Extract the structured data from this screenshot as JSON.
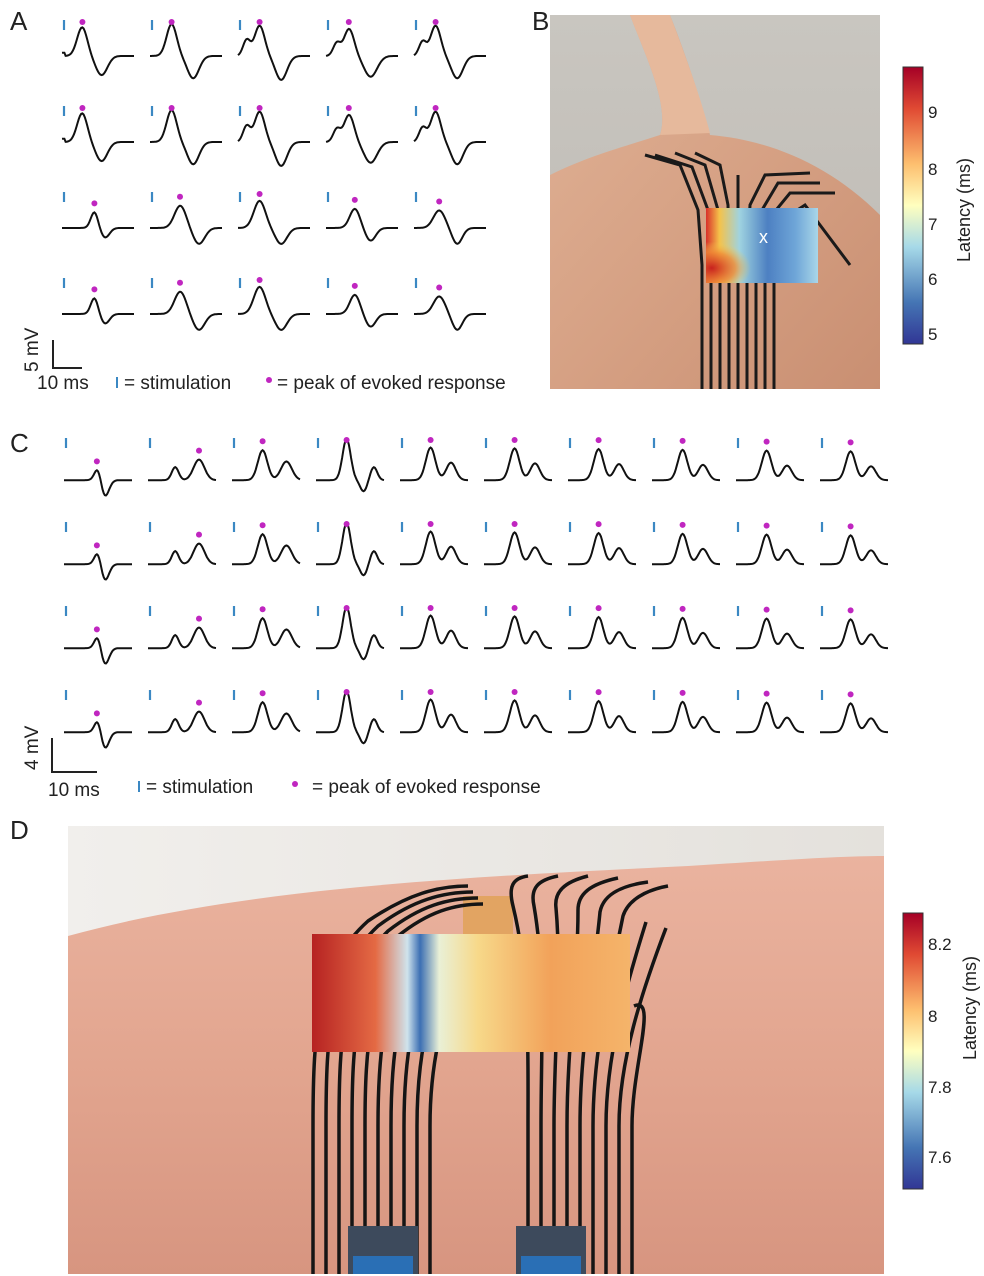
{
  "panels": {
    "a": {
      "label": "A",
      "scale_x": "10 ms",
      "scale_y": "5 mV",
      "legend_stim": "= stimulation",
      "legend_peak": "= peak of evoked response"
    },
    "b": {
      "label": "B",
      "marker": "x",
      "colorbar": {
        "title": "Latency (ms)",
        "ticks": [
          "9",
          "8",
          "7",
          "6",
          "5"
        ]
      }
    },
    "c": {
      "label": "C",
      "scale_x": "10 ms",
      "scale_y": "4 mV",
      "legend_stim": "= stimulation",
      "legend_peak": "= peak of evoked response"
    },
    "d": {
      "label": "D",
      "colorbar": {
        "title": "Latency (ms)",
        "ticks": [
          "8.2",
          "8",
          "7.8",
          "7.6"
        ]
      }
    }
  },
  "colors": {
    "stimulation": "#3b88c3",
    "peak": "#c026c0",
    "trace": "#111111"
  }
}
